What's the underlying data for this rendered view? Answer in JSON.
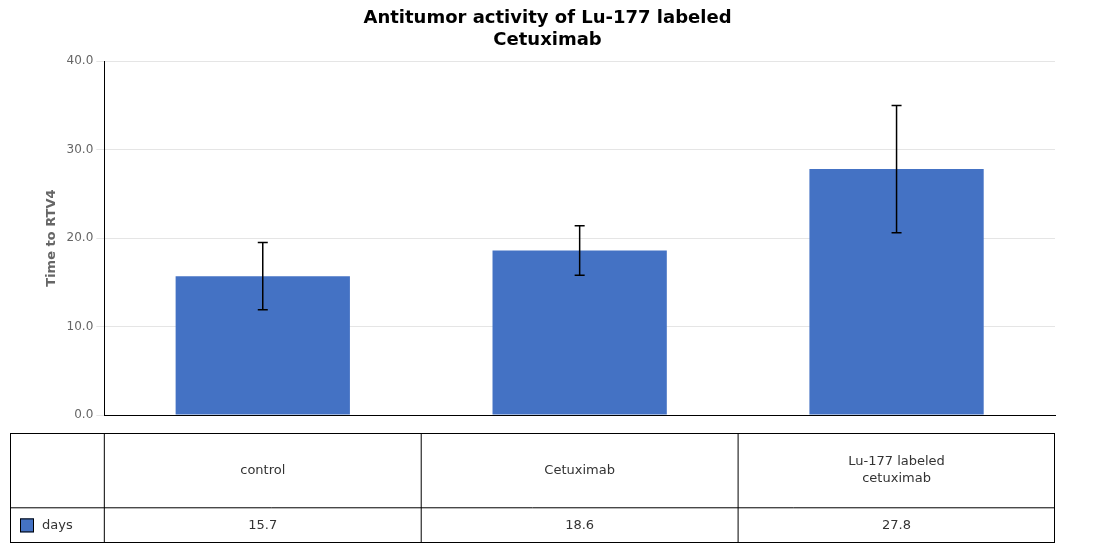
{
  "chart_data": {
    "type": "bar",
    "title": "Antitumor activity of Lu-177 labeled\nCetuximab",
    "categories": [
      "control",
      "Cetuximab",
      "Lu-177 labeled\ncetuximab"
    ],
    "series": [
      {
        "name": "days",
        "color": "#4472C4",
        "values": [
          15.7,
          18.6,
          27.8
        ],
        "errors": [
          3.8,
          2.8,
          7.2
        ]
      }
    ],
    "ylabel": "Time to RTV4",
    "ylim": [
      0,
      40
    ],
    "yticks": [
      {
        "value": 0,
        "label": "0.0"
      },
      {
        "value": 10,
        "label": "10.0"
      },
      {
        "value": 20,
        "label": "20.0"
      },
      {
        "value": 30,
        "label": "30.0"
      },
      {
        "value": 40,
        "label": "40.0"
      }
    ],
    "grid": true,
    "legend": "bottom",
    "data_labels": true,
    "tick_labels": "y"
  }
}
